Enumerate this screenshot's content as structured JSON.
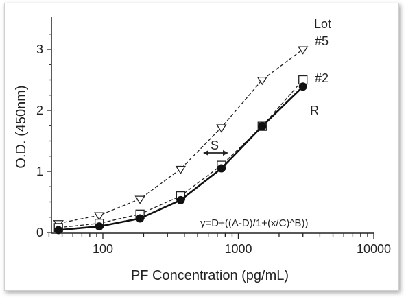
{
  "chart_data": {
    "type": "line",
    "xscale": "log",
    "xlim": [
      40,
      10000
    ],
    "ylim": [
      0,
      3.3
    ],
    "xticks": [
      100,
      1000,
      10000
    ],
    "xtick_labels": [
      "100",
      "1000",
      "10000"
    ],
    "yticks": [
      0,
      1,
      2,
      3
    ],
    "ytick_labels": [
      "0",
      "1",
      "2",
      "3"
    ],
    "xlabel": "PF Concentration (pg/mL)",
    "ylabel": "O.D. (450nm)",
    "grid": false,
    "series": [
      {
        "name": "#5",
        "style": "dashed",
        "marker": "triangle-down-open",
        "color": "#222222",
        "x": [
          47,
          94,
          188,
          375,
          750,
          1500,
          3000
        ],
        "y": [
          0.15,
          0.28,
          0.55,
          1.04,
          1.72,
          2.5,
          3.0
        ]
      },
      {
        "name": "#2",
        "style": "dashed",
        "marker": "square-open",
        "color": "#222222",
        "x": [
          47,
          94,
          188,
          375,
          750,
          1500,
          3000
        ],
        "y": [
          0.08,
          0.15,
          0.3,
          0.6,
          1.1,
          1.74,
          2.5
        ]
      },
      {
        "name": "R",
        "style": "solid",
        "marker": "circle-filled",
        "color": "#111111",
        "x": [
          47,
          94,
          188,
          375,
          750,
          1500,
          3000
        ],
        "y": [
          0.04,
          0.1,
          0.23,
          0.53,
          1.05,
          1.74,
          2.39
        ]
      }
    ],
    "annotations": {
      "lot_label": "Lot",
      "s_label": "S",
      "formula": "y=D+((A-D)/1+(x/C)^B))"
    }
  }
}
